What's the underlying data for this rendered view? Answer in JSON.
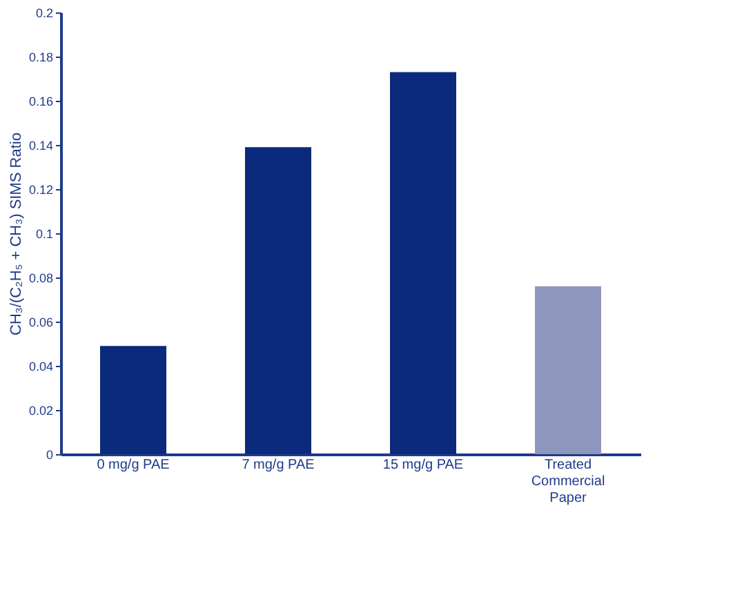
{
  "chart_data": {
    "type": "bar",
    "ylabel": "CH₃/(C₂H₅ + CH₃) SIMS Ratio",
    "categories": [
      "0 mg/g PAE",
      "7 mg/g PAE",
      "15 mg/g PAE",
      "Treated Commercial Paper"
    ],
    "values": [
      0.049,
      0.139,
      0.173,
      0.076
    ],
    "colors": [
      "#0b2a7c",
      "#0b2a7c",
      "#0b2a7c",
      "#8e96bd"
    ],
    "ylim": [
      0,
      0.2
    ],
    "yticks": [
      0,
      0.02,
      0.04,
      0.06,
      0.08,
      0.1,
      0.12,
      0.14,
      0.16,
      0.18,
      0.2
    ],
    "grid": false
  }
}
